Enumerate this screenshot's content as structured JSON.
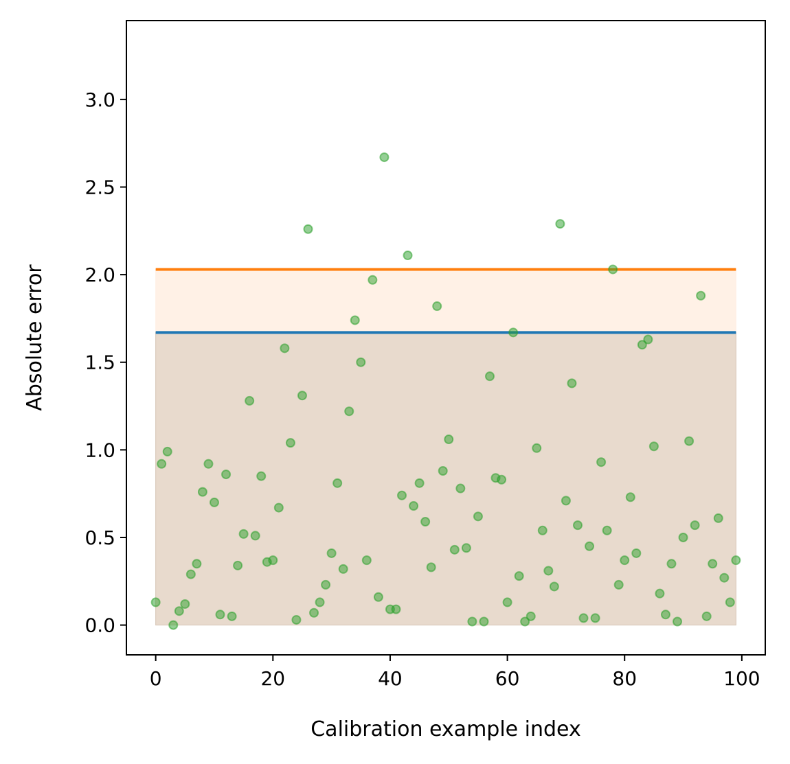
{
  "chart_data": {
    "type": "scatter",
    "title": "",
    "xlabel": "Calibration example index",
    "ylabel": "Absolute error",
    "xlim": [
      -5,
      104
    ],
    "ylim": [
      -0.17,
      3.45
    ],
    "xticks": [
      0,
      20,
      40,
      60,
      80,
      100
    ],
    "yticks": [
      0.0,
      0.5,
      1.0,
      1.5,
      2.0,
      2.5,
      3.0
    ],
    "xtick_labels": [
      "0",
      "20",
      "40",
      "60",
      "80",
      "100"
    ],
    "ytick_labels": [
      "0.0",
      "0.5",
      "1.0",
      "1.5",
      "2.0",
      "2.5",
      "3.0"
    ],
    "grid": false,
    "legend": "none",
    "x": [
      0,
      1,
      2,
      3,
      4,
      5,
      6,
      7,
      8,
      9,
      10,
      11,
      12,
      13,
      14,
      15,
      16,
      17,
      18,
      19,
      20,
      21,
      22,
      23,
      24,
      25,
      26,
      27,
      28,
      29,
      30,
      31,
      32,
      33,
      34,
      35,
      36,
      37,
      38,
      39,
      40,
      41,
      42,
      43,
      44,
      45,
      46,
      47,
      48,
      49,
      50,
      51,
      52,
      53,
      54,
      55,
      56,
      57,
      58,
      59,
      60,
      61,
      62,
      63,
      64,
      65,
      66,
      67,
      68,
      69,
      70,
      71,
      72,
      73,
      74,
      75,
      76,
      77,
      78,
      79,
      80,
      81,
      82,
      83,
      84,
      85,
      86,
      87,
      88,
      89,
      90,
      91,
      92,
      93,
      94,
      95,
      96,
      97,
      98,
      99
    ],
    "y": [
      0.13,
      0.92,
      0.99,
      0.0,
      0.08,
      0.12,
      0.29,
      0.35,
      0.76,
      0.92,
      0.7,
      0.06,
      0.86,
      0.05,
      0.34,
      0.52,
      1.28,
      0.51,
      0.85,
      0.36,
      0.37,
      0.67,
      1.58,
      1.04,
      0.03,
      1.31,
      2.26,
      0.07,
      0.13,
      0.23,
      0.41,
      0.81,
      0.32,
      1.22,
      1.74,
      1.5,
      0.37,
      1.97,
      0.16,
      2.67,
      0.09,
      0.09,
      0.74,
      2.11,
      0.68,
      0.81,
      0.59,
      0.33,
      1.82,
      0.88,
      1.06,
      0.43,
      0.78,
      0.44,
      0.02,
      0.62,
      0.02,
      1.42,
      0.84,
      0.83,
      0.13,
      1.67,
      0.28,
      0.02,
      0.05,
      1.01,
      0.54,
      0.31,
      0.22,
      2.29,
      0.71,
      1.38,
      0.57,
      0.04,
      0.45,
      0.04,
      0.93,
      0.54,
      2.03,
      0.23,
      0.37,
      0.73,
      0.41,
      1.6,
      1.63,
      1.02,
      0.18,
      0.06,
      0.35,
      0.02,
      0.5,
      1.05,
      0.57,
      1.88,
      0.05,
      0.35,
      0.61,
      0.27,
      0.13,
      0.37
    ],
    "thresholds": [
      {
        "value": 1.67,
        "x_range": [
          0,
          99
        ],
        "color": "#1f77b4",
        "band_fill": "#d6c6b8"
      },
      {
        "value": 2.03,
        "x_range": [
          0,
          99
        ],
        "color": "#ff7f0e",
        "band_fill": "#fff0e3"
      }
    ],
    "point_color": "#2ca02c"
  }
}
